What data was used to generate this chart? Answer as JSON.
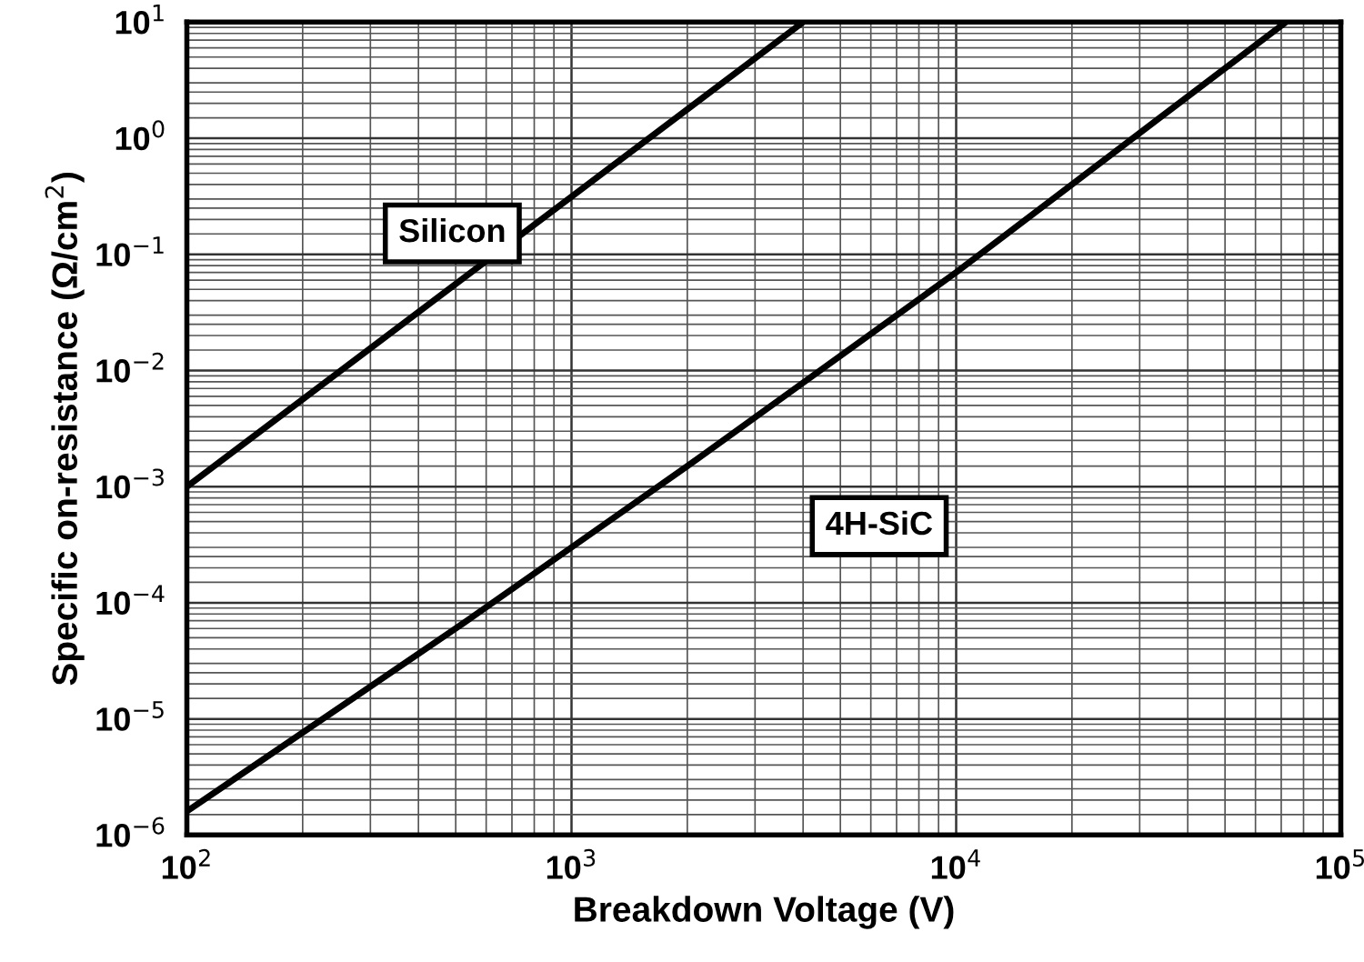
{
  "chart_data": {
    "type": "line",
    "xlabel": "Breakdown Voltage (V)",
    "ylabel": "Specific on-resistance (Ω/cm$^{2}$)",
    "log": "xy",
    "grid": true,
    "legend": false,
    "marker": "none",
    "line_style": "solid",
    "xlim": [
      100,
      100000
    ],
    "ylim": [
      1e-06,
      10
    ],
    "xticks": [
      {
        "value": 100,
        "label": "10$^{2}$"
      },
      {
        "value": 1000,
        "label": "10$^{3}$"
      },
      {
        "value": 10000,
        "label": "10$^{4}$"
      },
      {
        "value": 100000,
        "label": "10$^{5}$"
      }
    ],
    "yticks": [
      {
        "value": 1e-06,
        "label": "10$^{−6}$"
      },
      {
        "value": 1e-05,
        "label": "10$^{−5}$"
      },
      {
        "value": 0.0001,
        "label": "10$^{−4}$"
      },
      {
        "value": 0.001,
        "label": "10$^{−3}$"
      },
      {
        "value": 0.01,
        "label": "10$^{−2}$"
      },
      {
        "value": 0.1,
        "label": "10$^{−1}$"
      },
      {
        "value": 1,
        "label": "10$^{0}$"
      },
      {
        "value": 10,
        "label": "10$^{1}$"
      }
    ],
    "series": [
      {
        "name": "Silicon",
        "color": "#000000",
        "x": [
          100,
          4000
        ],
        "values": [
          0.001,
          10
        ]
      },
      {
        "name": "4H-SiC",
        "color": "#000000",
        "x": [
          100,
          500,
          1000,
          2000,
          10000,
          72000
        ],
        "values": [
          1.6e-06,
          6e-05,
          0.0003,
          0.0015,
          0.07,
          10
        ]
      }
    ]
  }
}
